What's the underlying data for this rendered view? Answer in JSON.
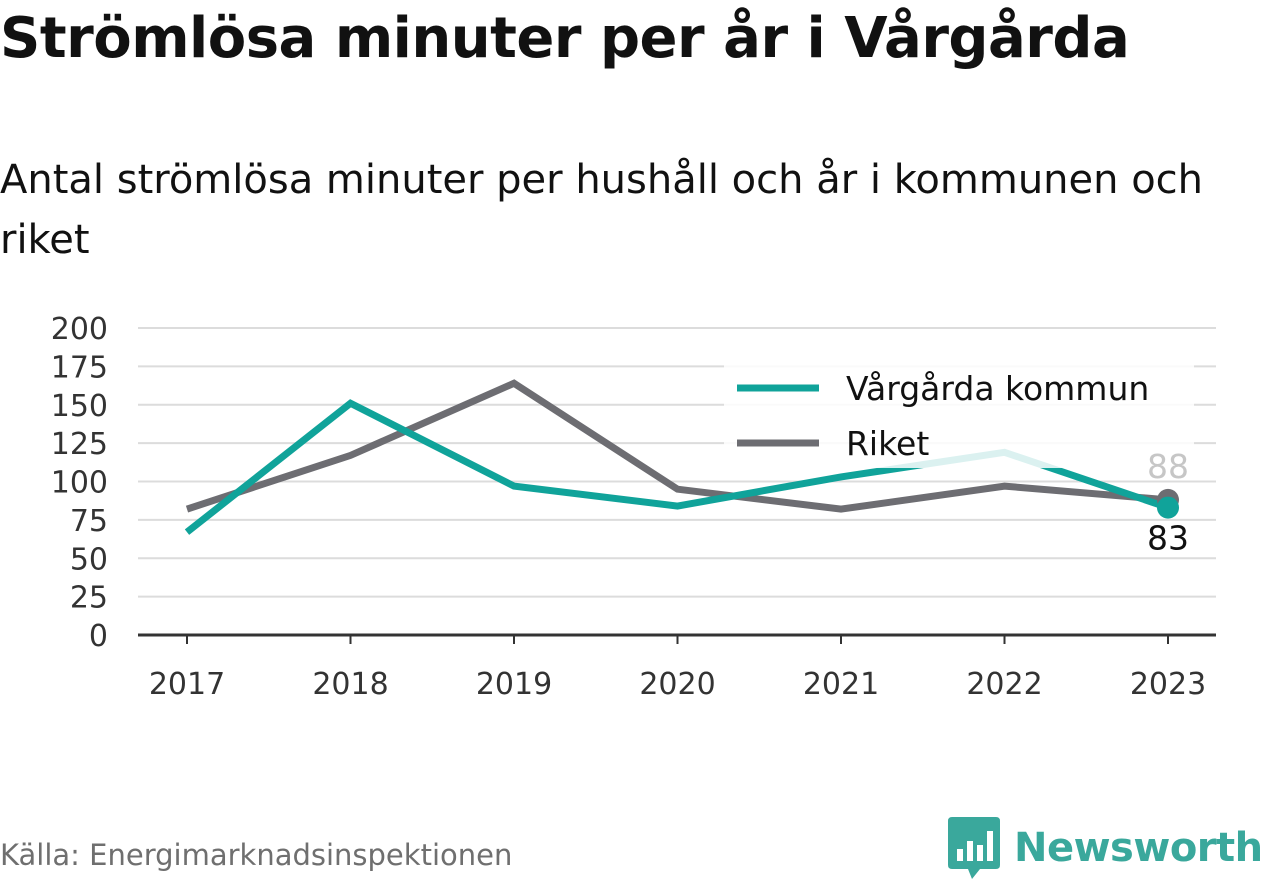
{
  "title": "Strömlösa minuter per år i Vårgårda",
  "subtitle": "Antal strömlösa minuter per hushåll och år i kommunen och riket",
  "source": "Källa: Energimarknadsinspektionen",
  "brand": {
    "name": "Newsworthy",
    "icon": "newsworthy-logo-icon",
    "color": "#3aa89c"
  },
  "chart_data": {
    "type": "line",
    "x": [
      "2017",
      "2018",
      "2019",
      "2020",
      "2021",
      "2022",
      "2023"
    ],
    "yticks": [
      "0",
      "25",
      "50",
      "75",
      "100",
      "125",
      "150",
      "175",
      "200"
    ],
    "ylim": [
      0,
      200
    ],
    "grid": true,
    "legend_position": "top-right",
    "series": [
      {
        "name": "Vårgårda kommun",
        "color": "#10a39a",
        "values": [
          67,
          151,
          97,
          84,
          103,
          119,
          83
        ]
      },
      {
        "name": "Riket",
        "color": "#6d6d72",
        "values": [
          82,
          117,
          164,
          95,
          82,
          97,
          88
        ]
      }
    ],
    "end_labels": {
      "vargarda": "83",
      "riket": "88"
    }
  }
}
